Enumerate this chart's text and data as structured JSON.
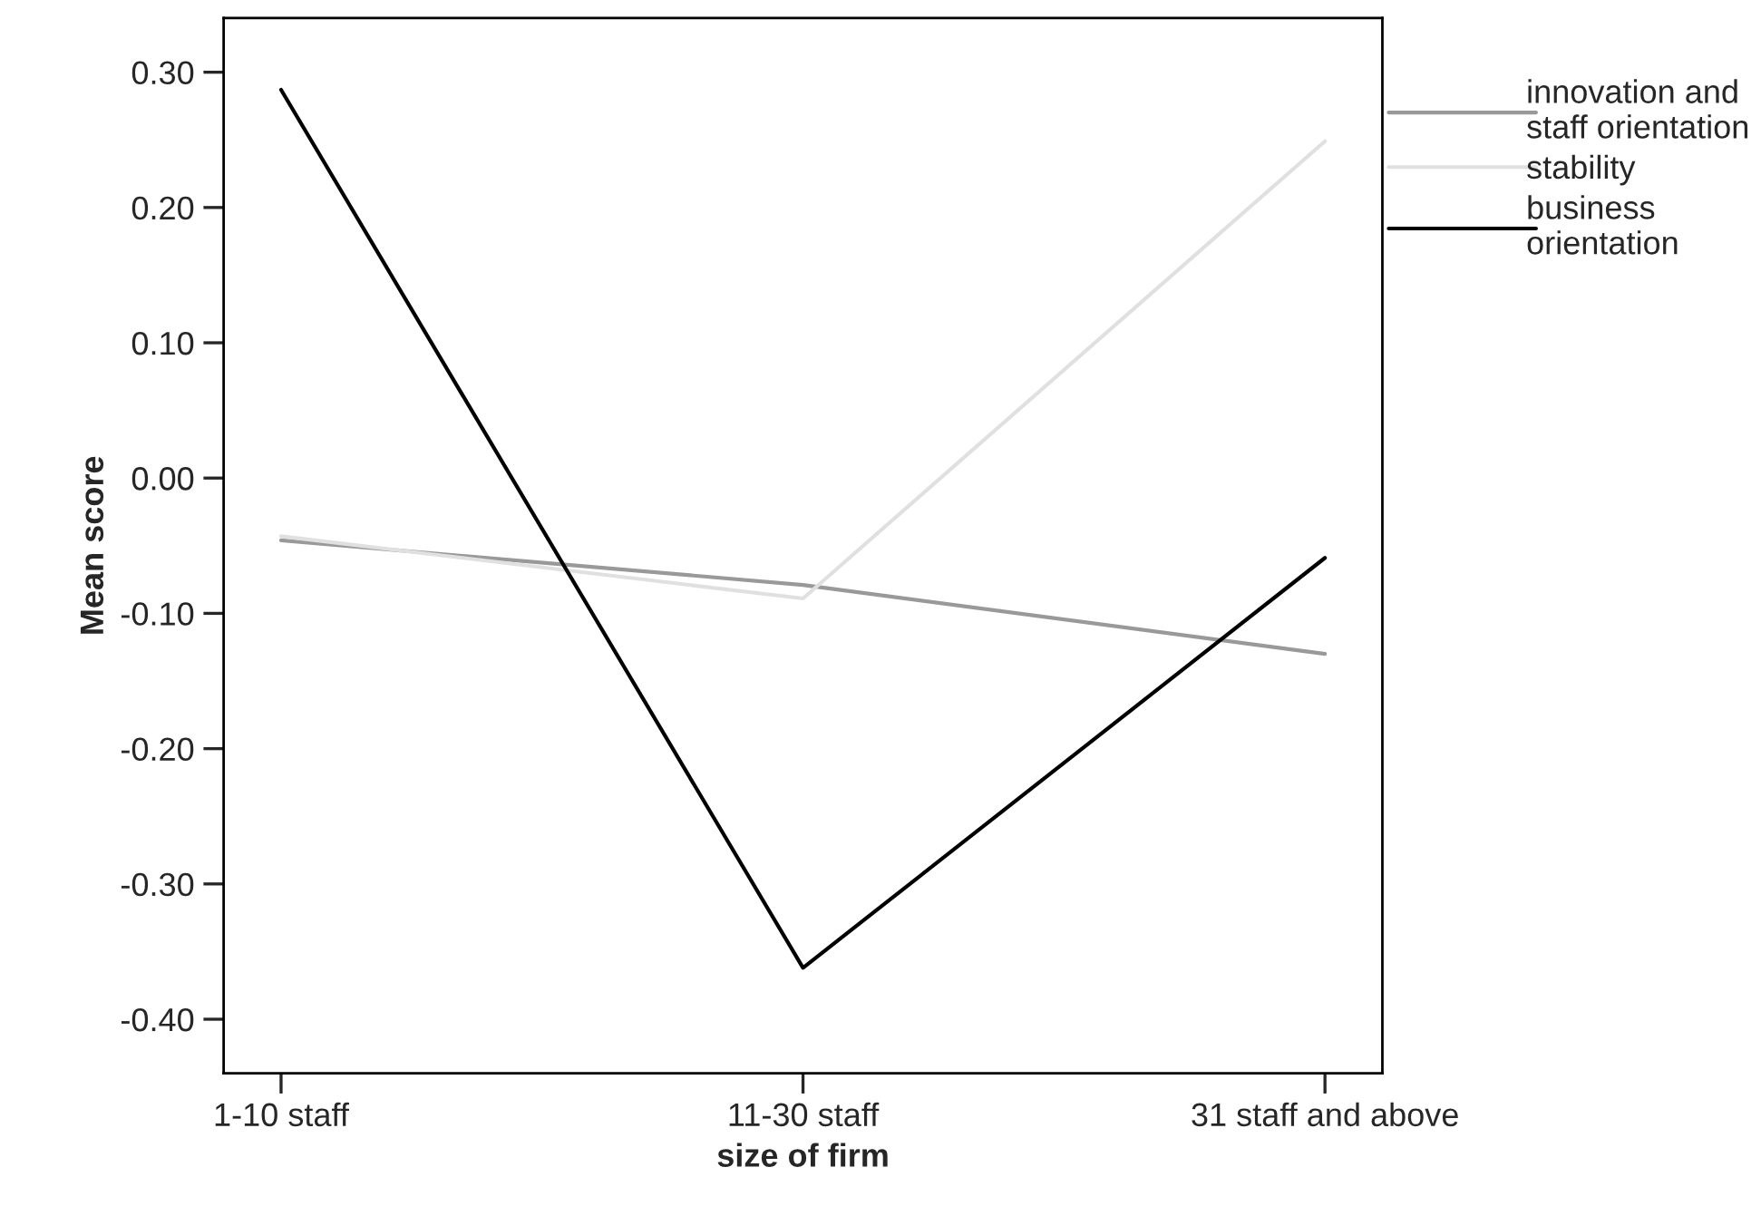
{
  "chart_data": {
    "type": "line",
    "xlabel": "size of firm",
    "ylabel": "Mean score",
    "categories": [
      "1-10 staff",
      "11-30 staff",
      "31 staff and above"
    ],
    "series": [
      {
        "name": "innovation and\nstaff orientation",
        "color": "#999999",
        "values": [
          -0.046,
          -0.079,
          -0.13
        ]
      },
      {
        "name": "stability",
        "color": "#e0e0e0",
        "values": [
          -0.043,
          -0.089,
          0.249
        ]
      },
      {
        "name": "business\norientation",
        "color": "#000000",
        "values": [
          0.287,
          -0.362,
          -0.059
        ]
      }
    ],
    "ylim": [
      -0.44,
      0.34
    ],
    "yticks": [
      {
        "value": -0.4,
        "label": "-0.40"
      },
      {
        "value": -0.3,
        "label": "-0.30"
      },
      {
        "value": -0.2,
        "label": "-0.20"
      },
      {
        "value": -0.1,
        "label": "-0.10"
      },
      {
        "value": 0,
        "label": "0.00"
      },
      {
        "value": 0.1,
        "label": "0.10"
      },
      {
        "value": 0.2,
        "label": "0.20"
      },
      {
        "value": 0.3,
        "label": "0.30"
      }
    ],
    "grid": false,
    "legend": "top right",
    "marker": "none",
    "line_style": "solid"
  }
}
